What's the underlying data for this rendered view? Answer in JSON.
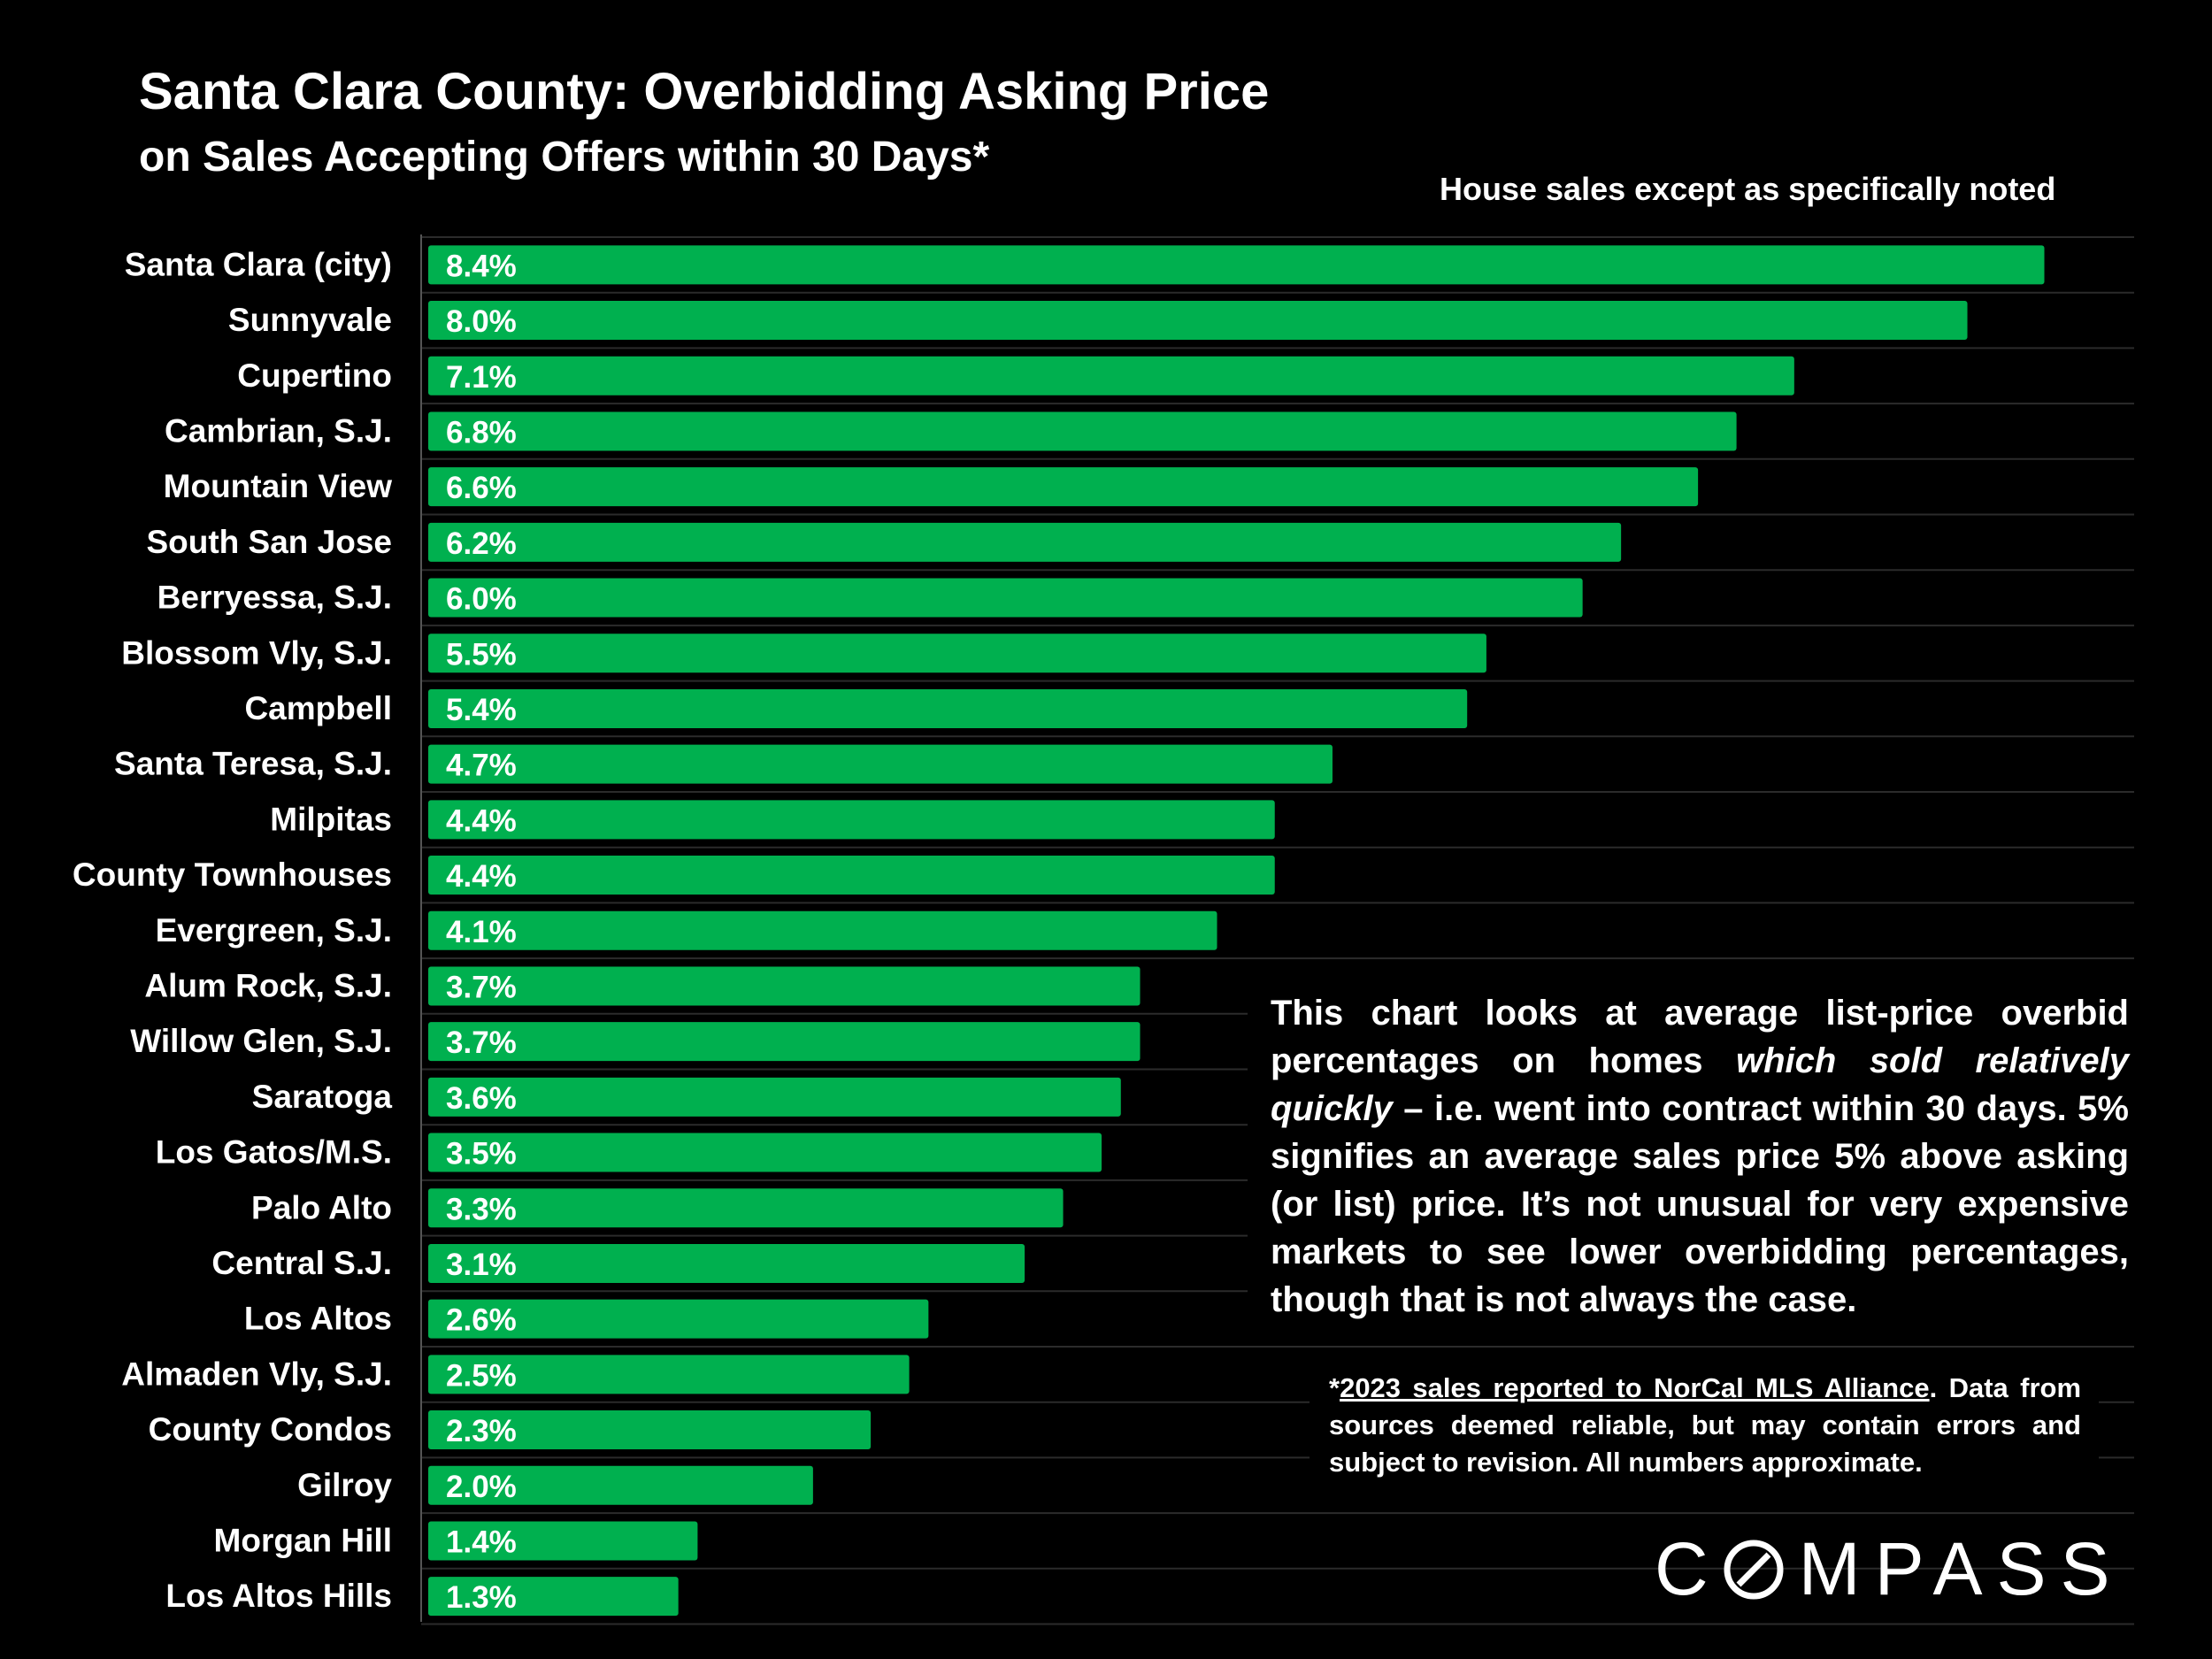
{
  "header": {
    "title": "Santa Clara County: Overbidding Asking Price",
    "subtitle": "on Sales Accepting Offers within 30 Days*",
    "note": "House sales except as specifically noted"
  },
  "chart_data": {
    "type": "bar",
    "orientation": "horizontal",
    "title": "Santa Clara County: Overbidding Asking Price",
    "subtitle": "on Sales Accepting Offers within 30 Days*",
    "xlabel": "",
    "ylabel": "",
    "xlim": [
      0,
      8.6
    ],
    "bar_color": "#00b04f",
    "categories": [
      "Santa Clara (city)",
      "Sunnyvale",
      "Cupertino",
      "Cambrian, S.J.",
      "Mountain View",
      "South San Jose",
      "Berryessa, S.J.",
      "Blossom Vly, S.J.",
      "Campbell",
      "Santa Teresa, S.J.",
      "Milpitas",
      "County Townhouses",
      "Evergreen, S.J.",
      "Alum Rock, S.J.",
      "Willow Glen, S.J.",
      "Saratoga",
      "Los Gatos/M.S.",
      "Palo Alto",
      "Central S.J.",
      "Los Altos",
      "Almaden Vly, S.J.",
      "County Condos",
      "Gilroy",
      "Morgan Hill",
      "Los Altos Hills"
    ],
    "values": [
      8.4,
      8.0,
      7.1,
      6.8,
      6.6,
      6.2,
      6.0,
      5.5,
      5.4,
      4.7,
      4.4,
      4.4,
      4.1,
      3.7,
      3.7,
      3.6,
      3.5,
      3.3,
      3.1,
      2.6,
      2.5,
      2.3,
      2.0,
      1.4,
      1.3
    ],
    "value_labels": [
      "8.4%",
      "8.0%",
      "7.1%",
      "6.8%",
      "6.6%",
      "6.2%",
      "6.0%",
      "5.5%",
      "5.4%",
      "4.7%",
      "4.4%",
      "4.4%",
      "4.1%",
      "3.7%",
      "3.7%",
      "3.6%",
      "3.5%",
      "3.3%",
      "3.1%",
      "2.6%",
      "2.5%",
      "2.3%",
      "2.0%",
      "1.4%",
      "1.3%"
    ]
  },
  "explanation": {
    "p1": "This chart looks at average list-price overbid percentages on homes ",
    "em": "which sold relatively quickly",
    "p2": " – i.e. went into contract within 30 days. 5% signifies an average sales price 5% above asking (or list) price. It’s not unusual for very expensive markets to see lower overbidding percentages, though that is not always the case."
  },
  "footnote": {
    "prefix": "*",
    "link": "2023 sales reported to NorCal MLS Alliance",
    "rest": ". Data from sources deemed reliable, but may contain errors and subject to revision. All numbers approximate."
  },
  "logo": {
    "before": "C",
    "after": "MPASS"
  }
}
